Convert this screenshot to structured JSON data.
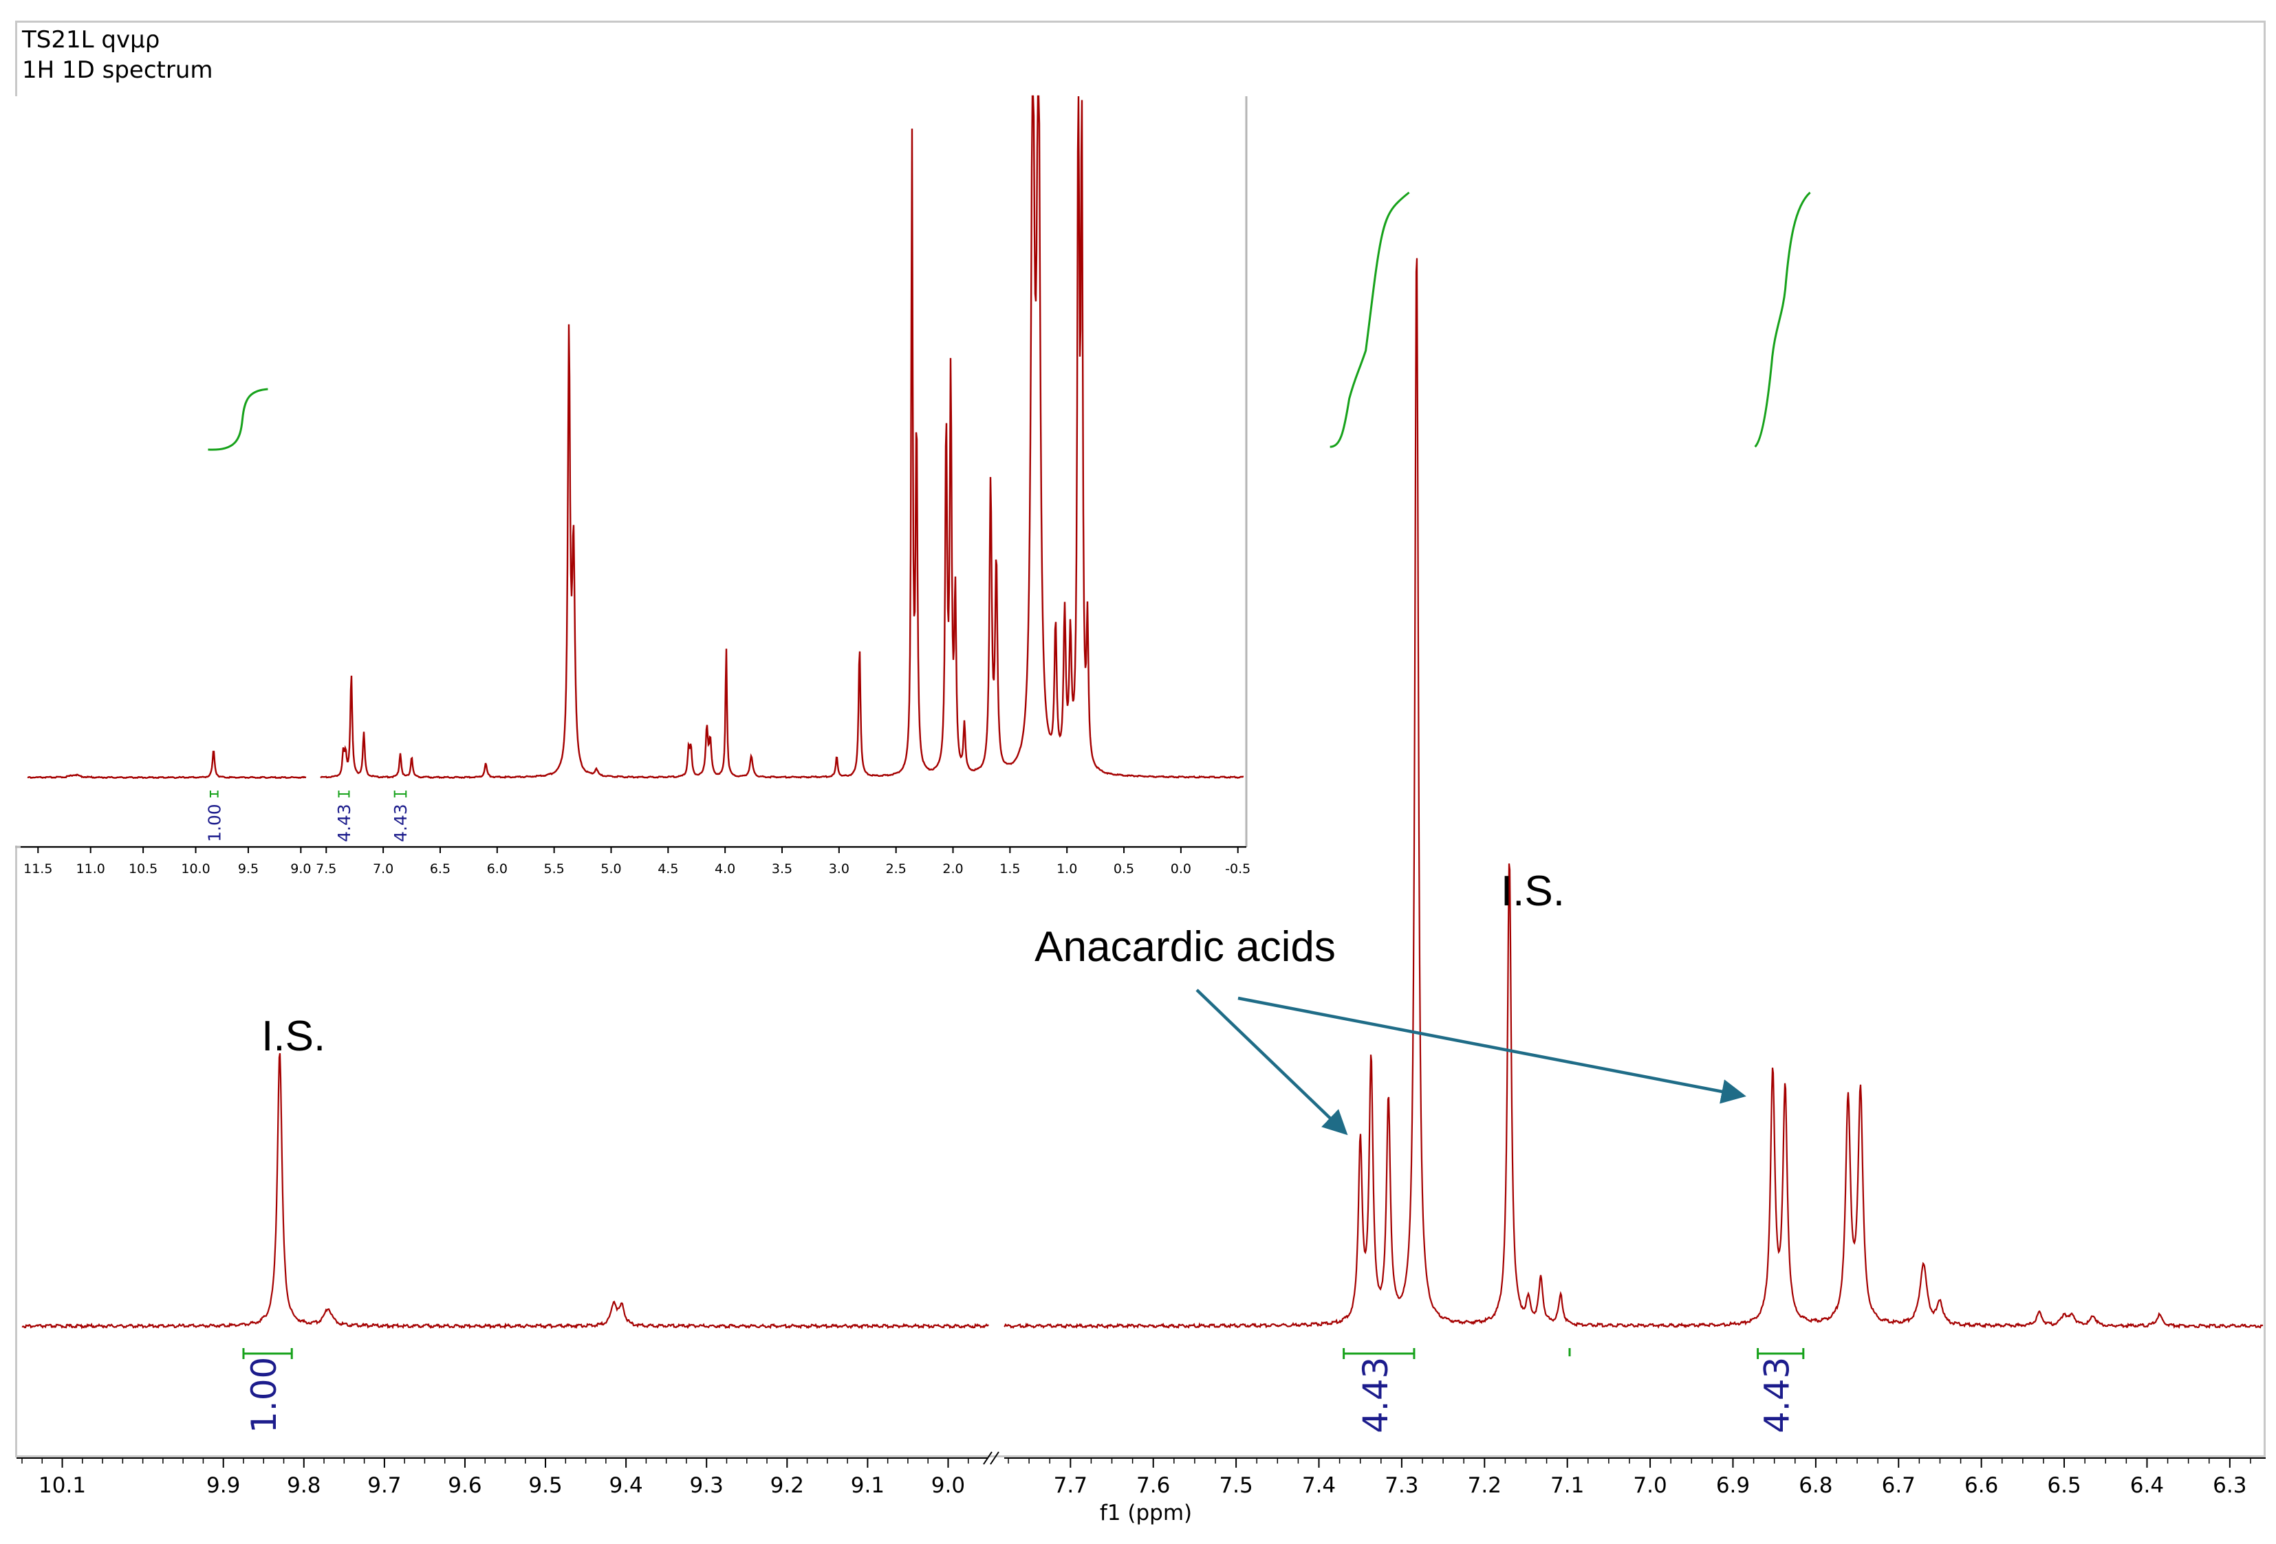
{
  "header": {
    "line1": "TS21L qvμρ",
    "line2": "1H 1D spectrum"
  },
  "colors": {
    "spectrum": "#a50000",
    "integral": "#17a21b",
    "integral_value": "#1c1c8c",
    "arrow": "#1f6c87",
    "text": "#000000"
  },
  "chart_data": [
    {
      "type": "line",
      "role": "main spectrum",
      "xlabel": "f1 (ppm)",
      "axis_direction": "decreasing to the right",
      "broken_axis": {
        "segments": [
          [
            10.15,
            8.95
          ],
          [
            7.78,
            6.26
          ]
        ],
        "break_marker": "//"
      },
      "ticks_left": [
        "10.1",
        "9.9",
        "9.8",
        "9.7",
        "9.6",
        "9.5",
        "9.4",
        "9.3",
        "9.2",
        "9.1",
        "9.0"
      ],
      "ticks_right": [
        "7.7",
        "7.6",
        "7.5",
        "7.4",
        "7.3",
        "7.2",
        "7.1",
        "7.0",
        "6.9",
        "6.8",
        "6.7",
        "6.6",
        "6.5",
        "6.4",
        "6.3"
      ],
      "peaks": [
        {
          "ppm": 9.83,
          "intensity": 0.246,
          "width": 0.0035
        },
        {
          "ppm": 9.77,
          "intensity": 0.015,
          "width": 0.006
        },
        {
          "ppm": 9.415,
          "intensity": 0.02,
          "width": 0.004
        },
        {
          "ppm": 9.405,
          "intensity": 0.017,
          "width": 0.004
        },
        {
          "ppm": 7.35,
          "intensity": 0.16,
          "width": 0.0028
        },
        {
          "ppm": 7.337,
          "intensity": 0.232,
          "width": 0.0028
        },
        {
          "ppm": 7.316,
          "intensity": 0.197,
          "width": 0.0028
        },
        {
          "ppm": 7.282,
          "intensity": 0.968,
          "width": 0.0026
        },
        {
          "ppm": 7.17,
          "intensity": 0.417,
          "width": 0.0028
        },
        {
          "ppm": 7.147,
          "intensity": 0.02,
          "width": 0.003
        },
        {
          "ppm": 7.132,
          "intensity": 0.041,
          "width": 0.003
        },
        {
          "ppm": 7.108,
          "intensity": 0.026,
          "width": 0.003
        },
        {
          "ppm": 6.852,
          "intensity": 0.222,
          "width": 0.0032
        },
        {
          "ppm": 6.837,
          "intensity": 0.207,
          "width": 0.0032
        },
        {
          "ppm": 6.761,
          "intensity": 0.198,
          "width": 0.0035
        },
        {
          "ppm": 6.746,
          "intensity": 0.206,
          "width": 0.0035
        },
        {
          "ppm": 6.67,
          "intensity": 0.055,
          "width": 0.005
        },
        {
          "ppm": 6.65,
          "intensity": 0.02,
          "width": 0.004
        },
        {
          "ppm": 6.53,
          "intensity": 0.012,
          "width": 0.004
        },
        {
          "ppm": 6.5,
          "intensity": 0.01,
          "width": 0.004
        },
        {
          "ppm": 6.49,
          "intensity": 0.009,
          "width": 0.004
        },
        {
          "ppm": 6.465,
          "intensity": 0.009,
          "width": 0.004
        },
        {
          "ppm": 6.385,
          "intensity": 0.01,
          "width": 0.004
        }
      ],
      "annotations": [
        {
          "text": "I.S.",
          "ppm": 9.83
        },
        {
          "text": "I.S.",
          "ppm": 7.17
        },
        {
          "text": "Anacardic acids",
          "ppm": 7.53
        }
      ],
      "integrals": [
        {
          "label": "1.00",
          "from": 9.875,
          "to": 9.815
        },
        {
          "label": "4.43",
          "from": 7.37,
          "to": 7.285
        },
        {
          "label": "4.43",
          "from": 6.87,
          "to": 6.815
        }
      ],
      "integral_curves": [
        {
          "from": 7.37,
          "to": 7.26
        },
        {
          "from": 6.865,
          "to": 6.82
        }
      ]
    },
    {
      "type": "line",
      "role": "inset full spectrum",
      "axis_direction": "decreasing to the right",
      "broken_axis": {
        "segments": [
          [
            11.6,
            8.95
          ],
          [
            7.55,
            -0.55
          ]
        ]
      },
      "ticks": [
        "11.5",
        "11.0",
        "10.5",
        "10.0",
        "9.5",
        "9.0",
        "7.5",
        "7.0",
        "6.5",
        "6.0",
        "5.5",
        "5.0",
        "4.5",
        "4.0",
        "3.5",
        "3.0",
        "2.5",
        "2.0",
        "1.5",
        "1.0",
        "0.5",
        "0.0",
        "-0.5"
      ],
      "peaks": [
        {
          "ppm": 11.15,
          "intensity": 0.004,
          "width": 0.05
        },
        {
          "ppm": 9.83,
          "intensity": 0.04,
          "width": 0.012
        },
        {
          "ppm": 7.35,
          "intensity": 0.035,
          "width": 0.01
        },
        {
          "ppm": 7.33,
          "intensity": 0.03,
          "width": 0.01
        },
        {
          "ppm": 7.28,
          "intensity": 0.15,
          "width": 0.01
        },
        {
          "ppm": 7.17,
          "intensity": 0.065,
          "width": 0.01
        },
        {
          "ppm": 6.85,
          "intensity": 0.035,
          "width": 0.01
        },
        {
          "ppm": 6.75,
          "intensity": 0.03,
          "width": 0.01
        },
        {
          "ppm": 6.1,
          "intensity": 0.02,
          "width": 0.012
        },
        {
          "ppm": 5.37,
          "intensity": 0.63,
          "width": 0.012
        },
        {
          "ppm": 5.33,
          "intensity": 0.32,
          "width": 0.014
        },
        {
          "ppm": 5.13,
          "intensity": 0.01,
          "width": 0.015
        },
        {
          "ppm": 4.32,
          "intensity": 0.04,
          "width": 0.01
        },
        {
          "ppm": 4.3,
          "intensity": 0.04,
          "width": 0.01
        },
        {
          "ppm": 4.16,
          "intensity": 0.07,
          "width": 0.012
        },
        {
          "ppm": 4.13,
          "intensity": 0.05,
          "width": 0.012
        },
        {
          "ppm": 3.99,
          "intensity": 0.19,
          "width": 0.008
        },
        {
          "ppm": 3.77,
          "intensity": 0.03,
          "width": 0.015
        },
        {
          "ppm": 3.02,
          "intensity": 0.03,
          "width": 0.01
        },
        {
          "ppm": 2.82,
          "intensity": 0.19,
          "width": 0.01
        },
        {
          "ppm": 2.36,
          "intensity": 0.92,
          "width": 0.008
        },
        {
          "ppm": 2.32,
          "intensity": 0.5,
          "width": 0.01
        },
        {
          "ppm": 2.06,
          "intensity": 0.5,
          "width": 0.01
        },
        {
          "ppm": 2.02,
          "intensity": 0.57,
          "width": 0.01
        },
        {
          "ppm": 1.98,
          "intensity": 0.25,
          "width": 0.01
        },
        {
          "ppm": 1.9,
          "intensity": 0.07,
          "width": 0.01
        },
        {
          "ppm": 1.67,
          "intensity": 0.42,
          "width": 0.012
        },
        {
          "ppm": 1.62,
          "intensity": 0.3,
          "width": 0.012
        },
        {
          "ppm": 1.3,
          "intensity": 1.0,
          "width": 0.018
        },
        {
          "ppm": 1.25,
          "intensity": 1.0,
          "width": 0.018
        },
        {
          "ppm": 1.1,
          "intensity": 0.2,
          "width": 0.012
        },
        {
          "ppm": 1.02,
          "intensity": 0.22,
          "width": 0.012
        },
        {
          "ppm": 0.97,
          "intensity": 0.18,
          "width": 0.012
        },
        {
          "ppm": 0.9,
          "intensity": 1.0,
          "width": 0.01
        },
        {
          "ppm": 0.87,
          "intensity": 0.9,
          "width": 0.01
        },
        {
          "ppm": 0.82,
          "intensity": 0.2,
          "width": 0.01
        }
      ],
      "integrals": [
        {
          "label": "1.00",
          "from": 9.86,
          "to": 9.79
        },
        {
          "label": "4.43",
          "from": 7.39,
          "to": 7.3
        },
        {
          "label": "4.43",
          "from": 6.9,
          "to": 6.8
        }
      ],
      "integral_curves": [
        {
          "from": 9.85,
          "to": 9.5
        }
      ]
    }
  ]
}
